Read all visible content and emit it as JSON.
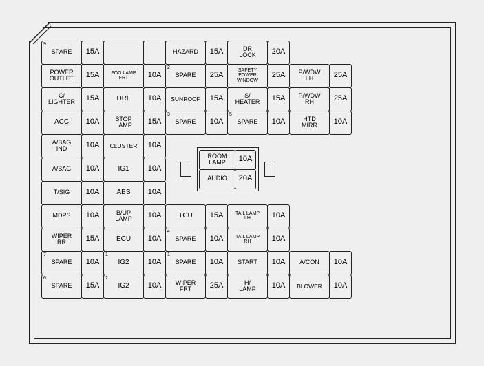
{
  "diagram": {
    "type": "fuse-box-table",
    "background_color": "#efefef",
    "border_color": "#222222",
    "font_family": "Arial",
    "label_fontsize_pt": 9,
    "amp_fontsize_pt": 11,
    "rows": [
      [
        {
          "label": "SPARE",
          "sup": "9"
        },
        {
          "amp": "15A"
        },
        {
          "blank": true
        },
        {
          "blank": true
        },
        {
          "label": "HAZARD"
        },
        {
          "amp": "15A"
        },
        {
          "label": "DR\nLOCK"
        },
        {
          "amp": "20A"
        },
        {
          "empty": true
        },
        {
          "empty": true
        }
      ],
      [
        {
          "label": "POWER\nOUTLET"
        },
        {
          "amp": "15A"
        },
        {
          "label": "FOG LAMP\nFRT",
          "cls": "tiny"
        },
        {
          "amp": "10A"
        },
        {
          "label": "SPARE",
          "sup": "2"
        },
        {
          "amp": "25A"
        },
        {
          "label": "SAFETY\nPOWER WINDOW",
          "cls": "tiny"
        },
        {
          "amp": "25A"
        },
        {
          "label": "P/WDW\nLH"
        },
        {
          "amp": "25A"
        }
      ],
      [
        {
          "label": "C/\nLIGHTER"
        },
        {
          "amp": "15A"
        },
        {
          "label": "DRL",
          "cls": "mid"
        },
        {
          "amp": "10A"
        },
        {
          "label": "SUNROOF",
          "cls": "small"
        },
        {
          "amp": "15A"
        },
        {
          "label": "S/\nHEATER"
        },
        {
          "amp": "15A"
        },
        {
          "label": "P/WDW\nRH"
        },
        {
          "amp": "25A"
        }
      ],
      [
        {
          "label": "ACC",
          "cls": "mid"
        },
        {
          "amp": "10A"
        },
        {
          "label": "STOP\nLAMP"
        },
        {
          "amp": "15A"
        },
        {
          "label": "SPARE",
          "sup": "3"
        },
        {
          "amp": "10A"
        },
        {
          "label": "SPARE",
          "sup": "5"
        },
        {
          "amp": "10A"
        },
        {
          "label": "HTD\nMIRR"
        },
        {
          "amp": "10A"
        }
      ],
      [
        {
          "label": "A/BAG\nIND"
        },
        {
          "amp": "10A"
        },
        {
          "label": "CLUSTER",
          "cls": "small"
        },
        {
          "amp": "10A"
        },
        {
          "inset_start": true
        },
        null,
        null,
        null,
        {
          "empty": true
        },
        {
          "empty": true
        }
      ],
      [
        {
          "label": "A/BAG"
        },
        {
          "amp": "10A"
        },
        {
          "label": "IG1",
          "cls": "mid"
        },
        {
          "amp": "10A"
        },
        null,
        null,
        null,
        null,
        {
          "empty": true
        },
        {
          "empty": true
        }
      ],
      [
        {
          "label": "T/SIG"
        },
        {
          "amp": "10A"
        },
        {
          "label": "ABS",
          "cls": "mid"
        },
        {
          "amp": "10A"
        },
        null,
        null,
        null,
        null,
        {
          "empty": true
        },
        {
          "empty": true
        }
      ],
      [
        {
          "label": "MDPS"
        },
        {
          "amp": "10A"
        },
        {
          "label": "B/UP\nLAMP"
        },
        {
          "amp": "10A"
        },
        {
          "label": "TCU",
          "cls": "mid"
        },
        {
          "amp": "15A"
        },
        {
          "label": "TAIL LAMP\nLH",
          "cls": "tiny"
        },
        {
          "amp": "10A"
        },
        {
          "empty": true
        },
        {
          "empty": true
        }
      ],
      [
        {
          "label": "WIPER\nRR"
        },
        {
          "amp": "15A"
        },
        {
          "label": "ECU",
          "cls": "mid"
        },
        {
          "amp": "10A"
        },
        {
          "label": "SPARE",
          "sup": "4"
        },
        {
          "amp": "10A"
        },
        {
          "label": "TAIL LAMP\nRH",
          "cls": "tiny"
        },
        {
          "amp": "10A"
        },
        {
          "empty": true
        },
        {
          "empty": true
        }
      ],
      [
        {
          "label": "SPARE",
          "sup": "7"
        },
        {
          "amp": "10A"
        },
        {
          "label": "IG2",
          "sup": "1",
          "cls": "mid"
        },
        {
          "amp": "10A"
        },
        {
          "label": "SPARE",
          "sup": "1"
        },
        {
          "amp": "10A"
        },
        {
          "label": "START"
        },
        {
          "amp": "10A"
        },
        {
          "label": "A/CON"
        },
        {
          "amp": "10A"
        }
      ],
      [
        {
          "label": "SPARE",
          "sup": "6"
        },
        {
          "amp": "15A"
        },
        {
          "label": "IG2",
          "sup": "2",
          "cls": "mid"
        },
        {
          "amp": "10A"
        },
        {
          "label": "WIPER\nFRT"
        },
        {
          "amp": "25A"
        },
        {
          "label": "H/\nLAMP"
        },
        {
          "amp": "10A"
        },
        {
          "label": "BLOWER",
          "cls": "small"
        },
        {
          "amp": "10A"
        }
      ]
    ],
    "inset": {
      "rows": [
        [
          {
            "label": "ROOM\nLAMP"
          },
          {
            "amp": "10A"
          }
        ],
        [
          {
            "label": "AUDIO"
          },
          {
            "amp": "20A"
          }
        ]
      ]
    }
  }
}
